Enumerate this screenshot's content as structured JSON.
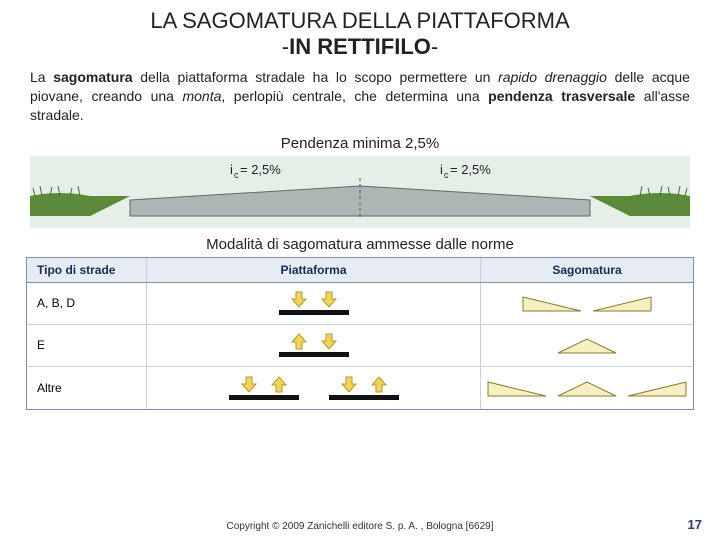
{
  "title": {
    "line1": "LA SAGOMATURA DELLA PIATTAFORMA",
    "line2_prefix": "-",
    "line2_bold": "IN RETTIFILO",
    "line2_suffix": "-"
  },
  "paragraph": {
    "seg1": "La ",
    "seg2_bold": "sagomatura",
    "seg3": " della piattaforma stradale ha lo scopo permettere un ",
    "seg4_italic": "rapido drenaggio",
    "seg5": " delle acque piovane, creando una ",
    "seg6_italic": "monta",
    "seg7": ", perlopiù centrale, che determina una ",
    "seg8_bold": "pendenza trasversale",
    "seg9": " all'asse stradale."
  },
  "caption1": "Pendenza minima 2,5%",
  "caption2": "Modalità di sagomatura ammesse dalle norme",
  "figure1": {
    "bg_sky": "#e5efe7",
    "platform_fill": "#aeb5b5",
    "grass_fill": "#5a8a3a",
    "brown_fill": "#a88a5a",
    "label_left": "i",
    "label_left2": " = 2,5%",
    "label_right": "i",
    "label_right2": " = 2,5%",
    "label_sub": "c"
  },
  "table": {
    "headers": {
      "c1": "Tipo di strade",
      "c2": "Piattaforma",
      "c3": "Sagomatura"
    },
    "rows": [
      {
        "label": "A, B, D",
        "platform": "down-down",
        "wedges": [
          "left",
          "right"
        ]
      },
      {
        "label": "E",
        "platform": "up-down",
        "wedges": [
          "both"
        ]
      },
      {
        "label": "Altre",
        "platform": "down-up-down-up",
        "wedges": [
          "left",
          "both",
          "right"
        ]
      }
    ],
    "colors": {
      "arrow_fill": "#f2d45a",
      "arrow_stroke": "#b4982e",
      "bar_fill": "#111111",
      "wedge_fill": "#f6efc2",
      "wedge_stroke": "#8a7a30",
      "header_bg": "#e6ecf4",
      "header_text": "#1a2a55",
      "border": "#7f8ea7"
    }
  },
  "copyright": "Copyright © 2009 Zanichelli editore S. p. A. , Bologna [6629]",
  "page": "17"
}
